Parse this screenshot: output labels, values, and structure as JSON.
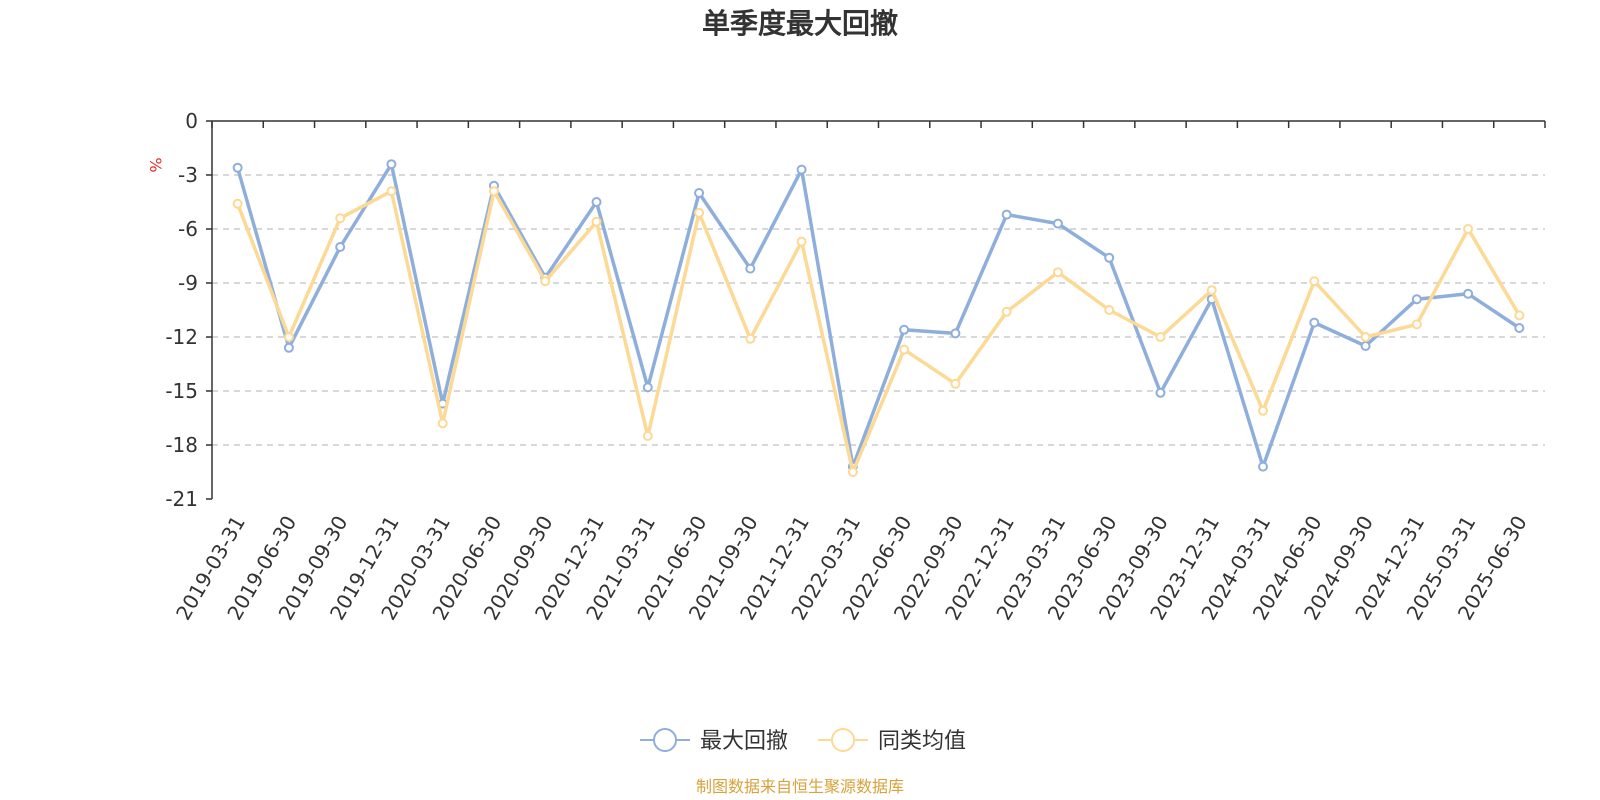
{
  "chart_data": {
    "type": "line",
    "title": "单季度最大回撤",
    "ylabel": "%",
    "xlabel": "",
    "ylim": [
      -21,
      0
    ],
    "yticks": [
      0,
      -3,
      -6,
      -9,
      -12,
      -15,
      -18,
      -21
    ],
    "grid": "horizontal-dashed",
    "legend_position": "bottom-center",
    "categories": [
      "2019-03-31",
      "2019-06-30",
      "2019-09-30",
      "2019-12-31",
      "2020-03-31",
      "2020-06-30",
      "2020-09-30",
      "2020-12-31",
      "2021-03-31",
      "2021-06-30",
      "2021-09-30",
      "2021-12-31",
      "2022-03-31",
      "2022-06-30",
      "2022-09-30",
      "2022-12-31",
      "2023-03-31",
      "2023-06-30",
      "2023-09-30",
      "2023-12-31",
      "2024-03-31",
      "2024-06-30",
      "2024-09-30",
      "2024-12-31",
      "2025-03-31",
      "2025-06-30"
    ],
    "series": [
      {
        "name": "最大回撤",
        "color": "#8eaedb",
        "values": [
          -2.6,
          -12.6,
          -7.0,
          -2.4,
          -15.7,
          -3.6,
          -8.7,
          -4.5,
          -14.8,
          -4.0,
          -8.2,
          -2.7,
          -19.2,
          -11.6,
          -11.8,
          -5.2,
          -5.7,
          -7.6,
          -15.1,
          -9.9,
          -19.2,
          -11.2,
          -12.5,
          -9.9,
          -9.6,
          -11.5
        ]
      },
      {
        "name": "同类均值",
        "color": "#fcd994",
        "values": [
          -4.6,
          -12.0,
          -5.4,
          -3.9,
          -16.8,
          -3.9,
          -8.9,
          -5.6,
          -17.5,
          -5.1,
          -12.1,
          -6.7,
          -19.5,
          -12.7,
          -14.6,
          -10.6,
          -8.4,
          -10.5,
          -12.0,
          -9.4,
          -16.1,
          -8.9,
          -12.0,
          -11.3,
          -6.0,
          -10.8
        ]
      }
    ]
  },
  "source": "制图数据来自恒生聚源数据库"
}
